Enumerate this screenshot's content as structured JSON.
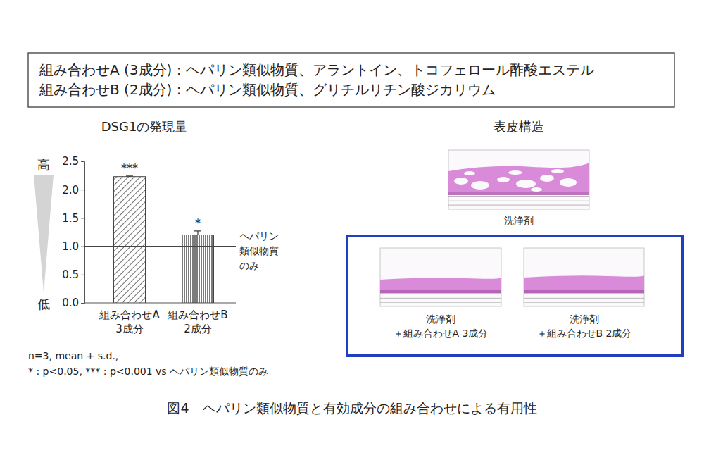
{
  "header": {
    "lines": [
      "組み合わせA (3成分) : ヘパリン類似物質、アラントイン、トコフェロール酢酸エステル",
      "組み合わせB (2成分) : ヘパリン類似物質、グリチルリチン酸ジカリウム"
    ]
  },
  "chart_data": {
    "type": "bar",
    "title": "DSG1の発現量",
    "categories": [
      "組み合わせA\n3成分",
      "組み合わせB\n2成分"
    ],
    "values": [
      2.23,
      1.2
    ],
    "errors": [
      0.01,
      0.07
    ],
    "annotations": [
      "***",
      "*"
    ],
    "reference": {
      "value": 1.0,
      "label": [
        "ヘパリン",
        "類似物質",
        "のみ"
      ]
    },
    "axis_labels": {
      "high": "高",
      "low": "低"
    },
    "ylim": [
      0,
      2.5
    ],
    "yticks": [
      {
        "value": 0,
        "label": "0.0"
      },
      {
        "value": 0.5,
        "label": "0.5"
      },
      {
        "value": 1,
        "label": "1.0"
      },
      {
        "value": 1.5,
        "label": "1.5"
      },
      {
        "value": 2,
        "label": "2.0"
      },
      {
        "value": 2.5,
        "label": "2.5"
      }
    ],
    "color": "#444444",
    "footnote": [
      "n=3, mean + s.d.,",
      "* : p<0.05, *** : p<0.001 vs ヘパリン類似物質のみ"
    ]
  },
  "images": {
    "title": "表皮構造",
    "panels": [
      {
        "label": [
          "洗浄剤"
        ]
      },
      {
        "label": [
          "洗浄剤",
          "＋組み合わせA 3成分"
        ]
      },
      {
        "label": [
          "洗浄剤",
          "＋組み合わせB 2成分"
        ]
      }
    ]
  },
  "caption": "図4　ヘパリン類似物質と有効成分の組み合わせによる有用性"
}
